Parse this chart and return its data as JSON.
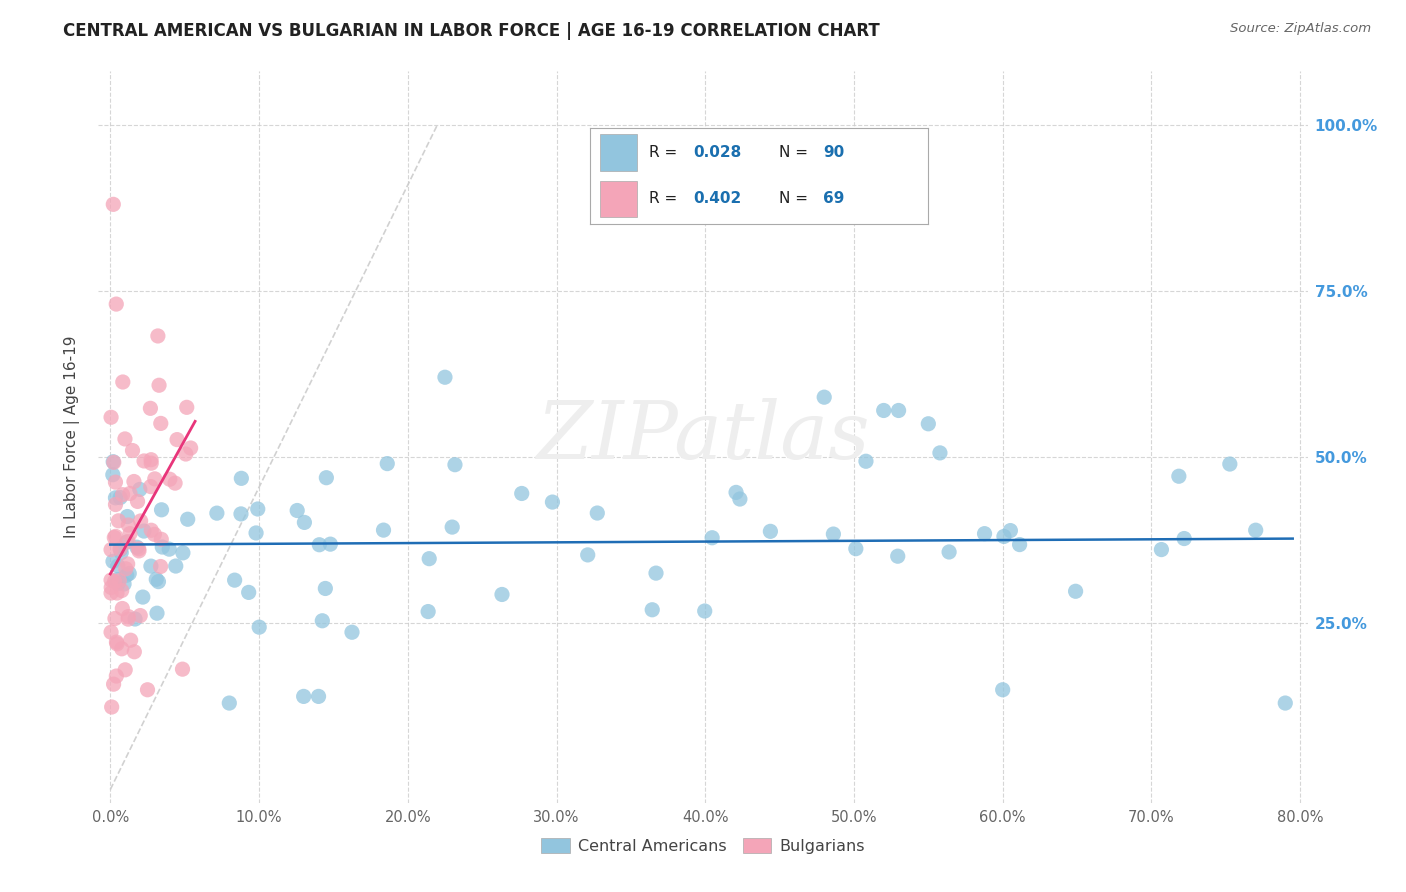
{
  "title": "CENTRAL AMERICAN VS BULGARIAN IN LABOR FORCE | AGE 16-19 CORRELATION CHART",
  "source": "Source: ZipAtlas.com",
  "ylabel": "In Labor Force | Age 16-19",
  "xlim": [
    0.0,
    0.8
  ],
  "ylim": [
    0.0,
    1.05
  ],
  "blue_R": 0.028,
  "blue_N": 90,
  "pink_R": 0.402,
  "pink_N": 69,
  "blue_color": "#92c5de",
  "pink_color": "#f4a5b8",
  "trendline_blue_color": "#1f6db5",
  "trendline_pink_color": "#e8357a",
  "diagonal_color": "#cccccc",
  "background_color": "#ffffff",
  "grid_color": "#cccccc",
  "legend_blue_label": "Central Americans",
  "legend_pink_label": "Bulgarians",
  "legend_text_color": "#333333",
  "legend_number_color": "#1a6faf",
  "right_axis_color": "#4499dd",
  "watermark_text": "ZIPatlas",
  "watermark_color": "#e8e8e8"
}
